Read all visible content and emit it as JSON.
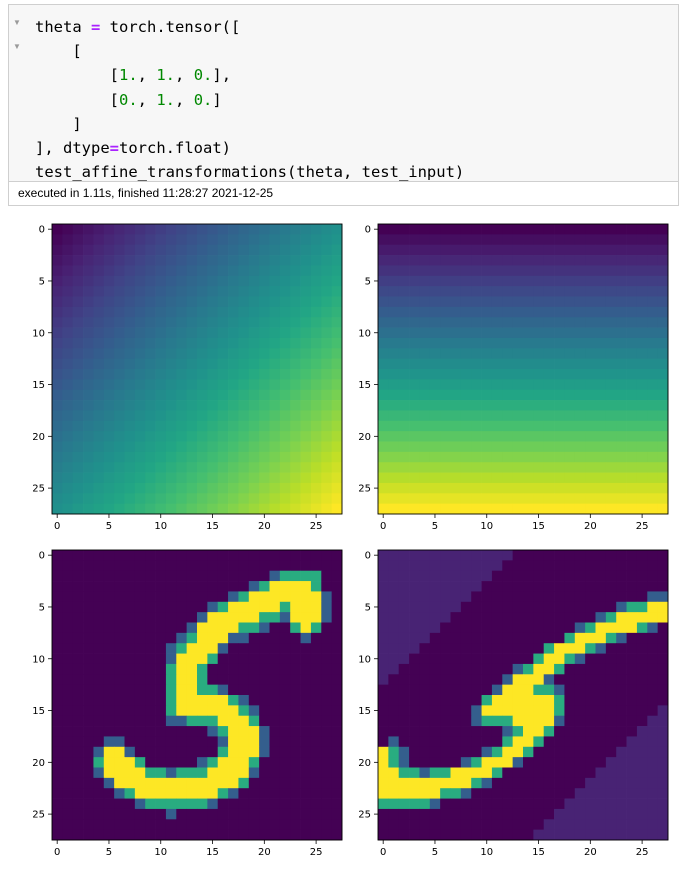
{
  "cell": {
    "code_lines": [
      [
        {
          "t": "theta "
        },
        {
          "t": "=",
          "c": "op"
        },
        {
          "t": " torch.tensor(["
        }
      ],
      [
        {
          "t": "    ["
        }
      ],
      [
        {
          "t": "        ["
        },
        {
          "t": "1.",
          "c": "num"
        },
        {
          "t": ", "
        },
        {
          "t": "1.",
          "c": "num"
        },
        {
          "t": ", "
        },
        {
          "t": "0.",
          "c": "num"
        },
        {
          "t": "],"
        }
      ],
      [
        {
          "t": "        ["
        },
        {
          "t": "0.",
          "c": "num"
        },
        {
          "t": ", "
        },
        {
          "t": "1.",
          "c": "num"
        },
        {
          "t": ", "
        },
        {
          "t": "0.",
          "c": "num"
        },
        {
          "t": "]"
        }
      ],
      [
        {
          "t": "    ]"
        }
      ],
      [
        {
          "t": "], dtype"
        },
        {
          "t": "=",
          "c": "op"
        },
        {
          "t": "torch.float)"
        }
      ],
      [
        {
          "t": "test_affine_transformations(theta, test_input)"
        }
      ]
    ],
    "fold_markers": [
      "▼",
      "▼"
    ],
    "execution_status": "executed in 1.11s, finished 11:28:27 2021-12-25"
  },
  "colors": {
    "cell_background": "#f7f7f7",
    "cell_border": "#cfcfcf",
    "keyword_operator": "#aa22ff",
    "number_literal": "#008800",
    "colormap": "viridis"
  },
  "chart_data": [
    {
      "type": "heatmap",
      "panel": "top-left",
      "rows": 28,
      "cols": 28,
      "pattern": "diagonal gradient, value rises with row + col",
      "colormap": "viridis",
      "x_ticks": [
        "0",
        "5",
        "10",
        "15",
        "20",
        "25"
      ],
      "y_ticks": [
        "0",
        "5",
        "10",
        "15",
        "20",
        "25"
      ]
    },
    {
      "type": "heatmap",
      "panel": "top-right",
      "rows": 28,
      "cols": 28,
      "pattern": "vertical gradient, value rises with row",
      "colormap": "viridis",
      "x_ticks": [
        "0",
        "5",
        "10",
        "15",
        "20",
        "25"
      ],
      "y_ticks": [
        "0",
        "5",
        "10",
        "15",
        "20",
        "25"
      ]
    },
    {
      "type": "heatmap",
      "panel": "bottom-left",
      "rows": 28,
      "cols": 28,
      "pattern": "handwritten digit 5",
      "colormap": "viridis",
      "x_ticks": [
        "0",
        "5",
        "10",
        "15",
        "20",
        "25"
      ],
      "y_ticks": [
        "0",
        "5",
        "10",
        "15",
        "20",
        "25"
      ]
    },
    {
      "type": "heatmap",
      "panel": "bottom-right",
      "rows": 28,
      "cols": 28,
      "pattern": "digit 5 sheared by theta, with out-of-range corner regions",
      "colormap": "viridis",
      "x_ticks": [
        "0",
        "5",
        "10",
        "15",
        "20",
        "25"
      ],
      "y_ticks": [
        "0",
        "5",
        "10",
        "15",
        "20",
        "25"
      ]
    }
  ]
}
